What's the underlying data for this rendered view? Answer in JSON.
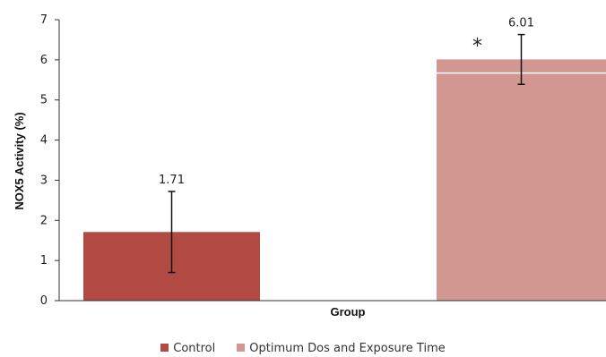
{
  "chart_data": {
    "type": "bar",
    "categories": [
      "Control",
      "Optimum Dos and Exposure Time"
    ],
    "values": [
      1.71,
      6.01
    ],
    "error_bars": [
      {
        "low": 0.7,
        "high": 2.72
      },
      {
        "low": 5.39,
        "high": 6.63
      }
    ],
    "data_labels": [
      "1.71",
      "6.01"
    ],
    "significance": [
      "",
      "*"
    ],
    "colors": [
      "#b04a43",
      "#d39792"
    ],
    "xlabel": "Group",
    "ylabel": "NOX5 Activity (%)",
    "ylim": [
      0,
      7
    ],
    "yticks": [
      "0",
      "1",
      "2",
      "3",
      "4",
      "5",
      "6",
      "7"
    ],
    "grid": false,
    "legend": {
      "position": "bottom",
      "entries": [
        "Control",
        "Optimum Dos and Exposure Time"
      ]
    }
  }
}
